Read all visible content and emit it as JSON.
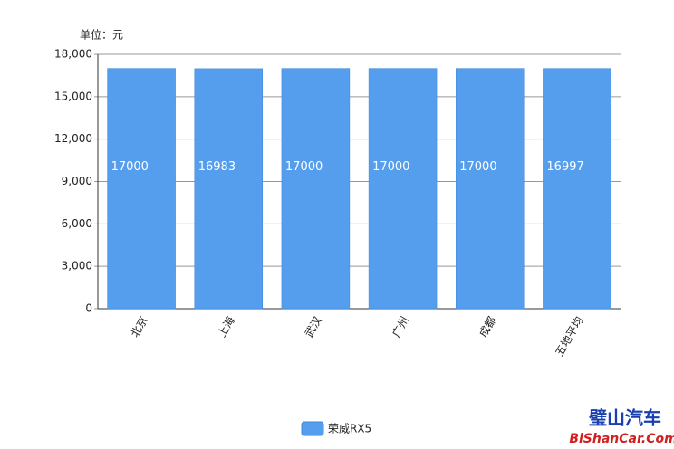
{
  "chart_data": {
    "type": "bar",
    "unit_label": "单位：元",
    "categories": [
      "北京",
      "上海",
      "武汉",
      "广州",
      "成都",
      "五地平均"
    ],
    "series": [
      {
        "name": "荣威RX5",
        "color": "#559ded",
        "values": [
          17000,
          16983,
          17000,
          17000,
          17000,
          16997
        ]
      }
    ],
    "ylim": [
      0,
      18000
    ],
    "yticks": [
      0,
      {
        "value": 3000,
        "label": "3,000"
      },
      {
        "value": 6000,
        "label": "6,000"
      },
      {
        "value": 9000,
        "label": "9,000"
      },
      {
        "value": 12000,
        "label": "12,000"
      },
      {
        "value": 15000,
        "label": "15,000"
      },
      {
        "value": 18000,
        "label": "18,000"
      }
    ],
    "grid": true,
    "legend": "bottom"
  },
  "watermark": {
    "name": "璧山汽车",
    "site": "BiShanCar.Com"
  }
}
